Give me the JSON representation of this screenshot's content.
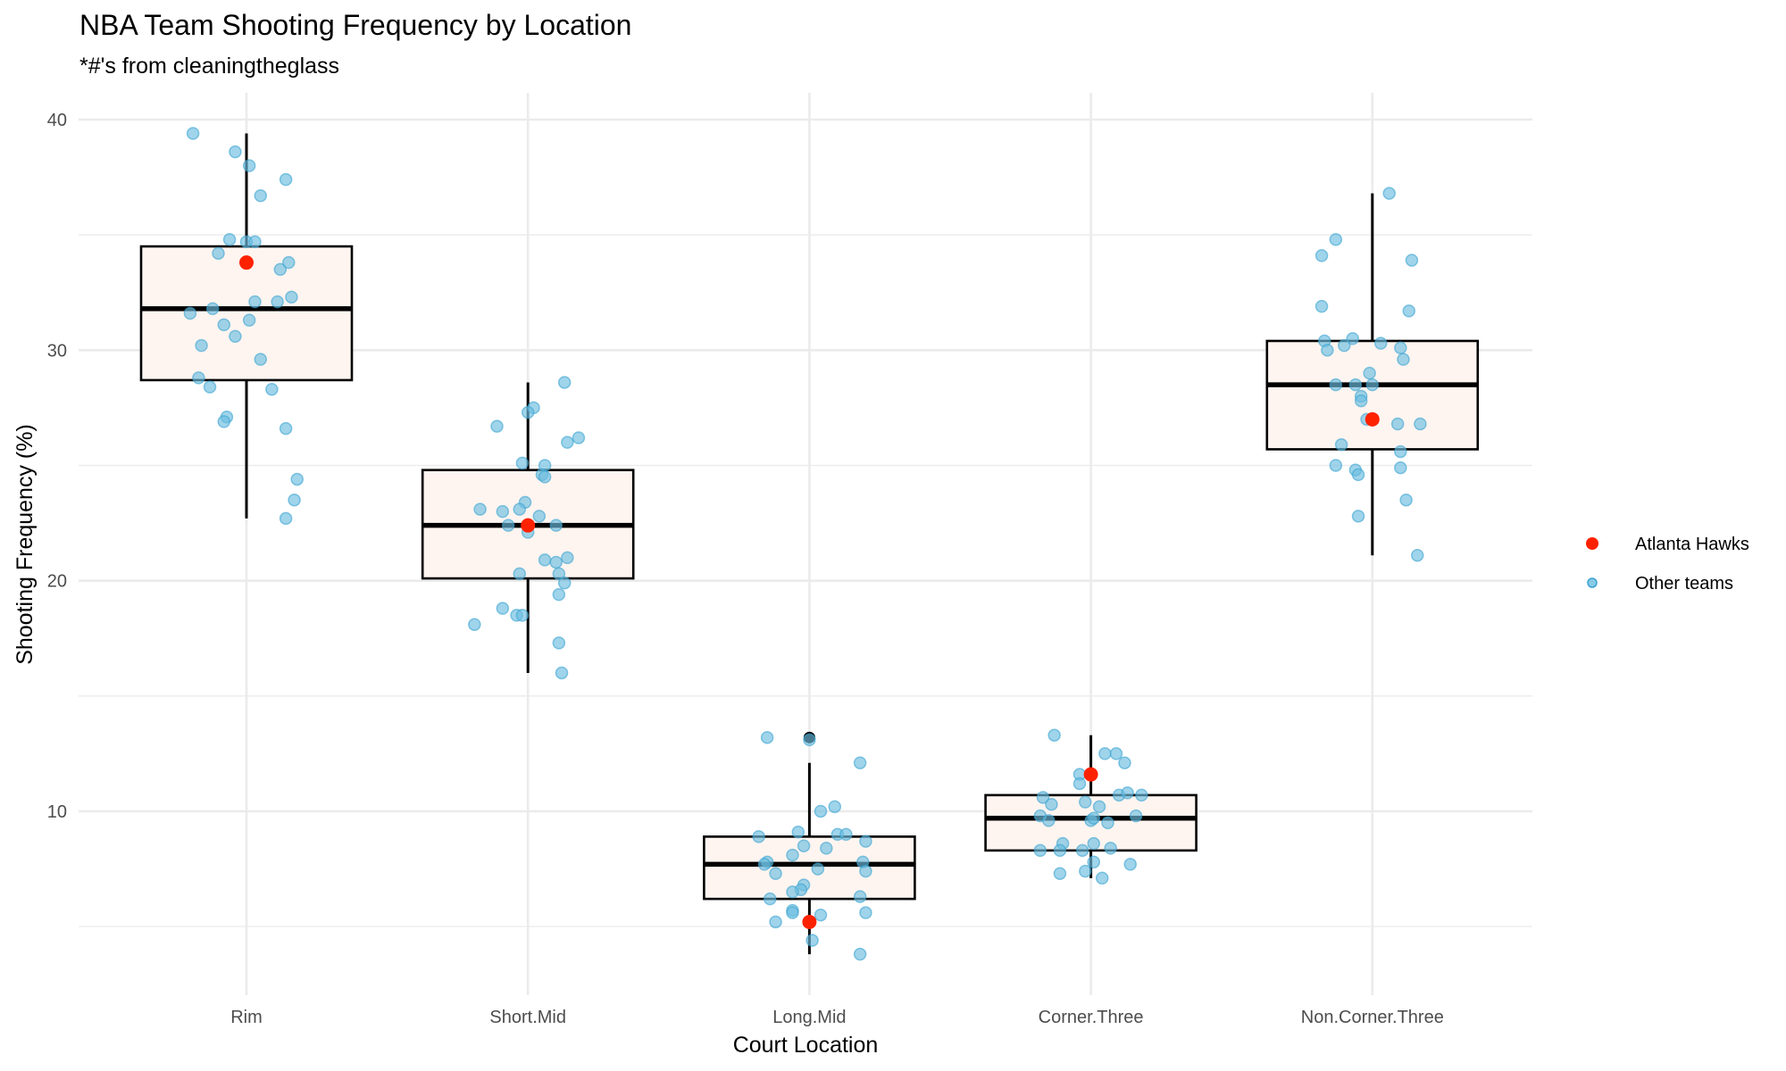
{
  "chart_data": {
    "type": "box",
    "title": "NBA Team Shooting Frequency by Location",
    "subtitle": "*#'s from cleaningtheglass",
    "xlabel": "Court Location",
    "ylabel": "Shooting Frequency (%)",
    "ylim": [
      2.4,
      42.5
    ],
    "yticks": [
      10,
      20,
      30,
      40
    ],
    "yminor": [
      5,
      15,
      25,
      35
    ],
    "ytick_labels": [
      "10",
      "20",
      "30",
      "40"
    ],
    "grid": true,
    "categories": [
      "Rim",
      "Short.Mid",
      "Long.Mid",
      "Corner.Three",
      "Non.Corner.Three"
    ],
    "legend": {
      "position": "right",
      "entries": [
        {
          "label": "Atlanta Hawks",
          "color": "#ff2200"
        },
        {
          "label": "Other teams",
          "color": "#6bbde0"
        }
      ]
    },
    "colors": {
      "box_fill": "#fff5f0",
      "box_stroke": "#000000",
      "hawks": "#ff2200",
      "others": "#6bbde0",
      "others_stroke": "#3aa3d0",
      "outlier": "#000000"
    },
    "boxes": [
      {
        "category": "Rim",
        "whisker_low": 22.7,
        "q1": 28.7,
        "median": 31.8,
        "q3": 34.5,
        "whisker_high": 39.4,
        "outliers": []
      },
      {
        "category": "Short.Mid",
        "whisker_low": 16.0,
        "q1": 20.1,
        "median": 22.4,
        "q3": 24.8,
        "whisker_high": 28.6,
        "outliers": []
      },
      {
        "category": "Long.Mid",
        "whisker_low": 3.8,
        "q1": 6.2,
        "median": 7.7,
        "q3": 8.9,
        "whisker_high": 12.1,
        "outliers": [
          13.2
        ]
      },
      {
        "category": "Corner.Three",
        "whisker_low": 7.1,
        "q1": 8.3,
        "median": 9.7,
        "q3": 10.7,
        "whisker_high": 13.3,
        "outliers": []
      },
      {
        "category": "Non.Corner.Three",
        "whisker_low": 21.1,
        "q1": 25.7,
        "median": 28.5,
        "q3": 30.4,
        "whisker_high": 36.8,
        "outliers": []
      }
    ],
    "hawks": [
      {
        "category": "Rim",
        "value": 33.8
      },
      {
        "category": "Short.Mid",
        "value": 22.4
      },
      {
        "category": "Long.Mid",
        "value": 5.2
      },
      {
        "category": "Corner.Three",
        "value": 11.6
      },
      {
        "category": "Non.Corner.Three",
        "value": 27.0
      }
    ],
    "other_teams": {
      "Rim": [
        [
          -0.19,
          39.4
        ],
        [
          -0.04,
          38.6
        ],
        [
          0.01,
          38.0
        ],
        [
          0.14,
          37.4
        ],
        [
          0.05,
          36.7
        ],
        [
          -0.06,
          34.8
        ],
        [
          0.0,
          34.7
        ],
        [
          0.03,
          34.7
        ],
        [
          -0.1,
          34.2
        ],
        [
          0.12,
          33.5
        ],
        [
          0.15,
          33.8
        ],
        [
          0.03,
          32.1
        ],
        [
          0.11,
          32.1
        ],
        [
          0.16,
          32.3
        ],
        [
          -0.2,
          31.6
        ],
        [
          -0.12,
          31.8
        ],
        [
          -0.08,
          31.1
        ],
        [
          0.01,
          31.3
        ],
        [
          -0.04,
          30.6
        ],
        [
          -0.16,
          30.2
        ],
        [
          0.05,
          29.6
        ],
        [
          -0.17,
          28.8
        ],
        [
          -0.13,
          28.4
        ],
        [
          0.09,
          28.3
        ],
        [
          -0.07,
          27.1
        ],
        [
          -0.08,
          26.9
        ],
        [
          0.14,
          26.6
        ],
        [
          0.18,
          24.4
        ],
        [
          0.17,
          23.5
        ],
        [
          0.14,
          22.7
        ]
      ],
      "Short.Mid": [
        [
          0.13,
          28.6
        ],
        [
          0.02,
          27.5
        ],
        [
          0.0,
          27.3
        ],
        [
          -0.11,
          26.7
        ],
        [
          0.18,
          26.2
        ],
        [
          0.14,
          26.0
        ],
        [
          -0.02,
          25.1
        ],
        [
          0.06,
          25.0
        ],
        [
          0.05,
          24.6
        ],
        [
          0.06,
          24.5
        ],
        [
          -0.01,
          23.4
        ],
        [
          -0.17,
          23.1
        ],
        [
          -0.09,
          23.0
        ],
        [
          -0.03,
          23.1
        ],
        [
          0.04,
          22.8
        ],
        [
          -0.07,
          22.4
        ],
        [
          0.1,
          22.4
        ],
        [
          0.0,
          22.1
        ],
        [
          0.06,
          20.9
        ],
        [
          0.1,
          20.8
        ],
        [
          0.14,
          21.0
        ],
        [
          -0.03,
          20.3
        ],
        [
          0.11,
          20.3
        ],
        [
          0.13,
          19.9
        ],
        [
          0.11,
          19.4
        ],
        [
          -0.09,
          18.8
        ],
        [
          -0.04,
          18.5
        ],
        [
          -0.02,
          18.5
        ],
        [
          -0.19,
          18.1
        ],
        [
          0.11,
          17.3
        ],
        [
          0.12,
          16.0
        ]
      ],
      "Long.Mid": [
        [
          -0.15,
          13.2
        ],
        [
          0.0,
          13.1
        ],
        [
          0.18,
          12.1
        ],
        [
          0.04,
          10.0
        ],
        [
          0.09,
          10.2
        ],
        [
          -0.04,
          9.1
        ],
        [
          -0.18,
          8.9
        ],
        [
          0.1,
          9.0
        ],
        [
          0.13,
          9.0
        ],
        [
          0.2,
          8.7
        ],
        [
          -0.02,
          8.5
        ],
        [
          0.06,
          8.4
        ],
        [
          -0.06,
          8.1
        ],
        [
          -0.15,
          7.8
        ],
        [
          -0.16,
          7.7
        ],
        [
          0.19,
          7.8
        ],
        [
          0.03,
          7.5
        ],
        [
          0.2,
          7.4
        ],
        [
          -0.12,
          7.3
        ],
        [
          -0.02,
          6.8
        ],
        [
          -0.03,
          6.6
        ],
        [
          -0.06,
          6.5
        ],
        [
          0.18,
          6.3
        ],
        [
          -0.14,
          6.2
        ],
        [
          -0.06,
          5.7
        ],
        [
          -0.06,
          5.6
        ],
        [
          0.2,
          5.6
        ],
        [
          -0.12,
          5.2
        ],
        [
          0.04,
          5.5
        ],
        [
          0.01,
          4.4
        ],
        [
          0.18,
          3.8
        ]
      ],
      "Corner.Three": [
        [
          -0.13,
          13.3
        ],
        [
          0.05,
          12.5
        ],
        [
          0.09,
          12.5
        ],
        [
          0.12,
          12.1
        ],
        [
          -0.04,
          11.6
        ],
        [
          -0.04,
          11.2
        ],
        [
          -0.17,
          10.6
        ],
        [
          0.1,
          10.7
        ],
        [
          0.13,
          10.8
        ],
        [
          0.18,
          10.7
        ],
        [
          -0.14,
          10.3
        ],
        [
          -0.02,
          10.4
        ],
        [
          0.03,
          10.2
        ],
        [
          -0.18,
          9.8
        ],
        [
          0.16,
          9.8
        ],
        [
          -0.15,
          9.6
        ],
        [
          0.0,
          9.6
        ],
        [
          0.01,
          9.7
        ],
        [
          0.06,
          9.5
        ],
        [
          -0.1,
          8.6
        ],
        [
          0.01,
          8.6
        ],
        [
          -0.18,
          8.3
        ],
        [
          -0.11,
          8.3
        ],
        [
          -0.03,
          8.3
        ],
        [
          0.07,
          8.4
        ],
        [
          0.01,
          7.8
        ],
        [
          0.14,
          7.7
        ],
        [
          -0.02,
          7.4
        ],
        [
          -0.11,
          7.3
        ],
        [
          0.04,
          7.1
        ]
      ],
      "Non.Corner.Three": [
        [
          0.06,
          36.8
        ],
        [
          -0.13,
          34.8
        ],
        [
          -0.18,
          34.1
        ],
        [
          0.14,
          33.9
        ],
        [
          -0.18,
          31.9
        ],
        [
          0.13,
          31.7
        ],
        [
          -0.17,
          30.4
        ],
        [
          -0.07,
          30.5
        ],
        [
          -0.1,
          30.2
        ],
        [
          0.03,
          30.3
        ],
        [
          -0.16,
          30.0
        ],
        [
          0.1,
          30.1
        ],
        [
          0.11,
          29.6
        ],
        [
          -0.01,
          29.0
        ],
        [
          -0.13,
          28.5
        ],
        [
          -0.06,
          28.5
        ],
        [
          0.0,
          28.5
        ],
        [
          -0.04,
          28.0
        ],
        [
          -0.04,
          27.8
        ],
        [
          -0.02,
          27.0
        ],
        [
          0.09,
          26.8
        ],
        [
          0.17,
          26.8
        ],
        [
          -0.11,
          25.9
        ],
        [
          0.1,
          25.6
        ],
        [
          -0.13,
          25.0
        ],
        [
          -0.06,
          24.8
        ],
        [
          -0.05,
          24.6
        ],
        [
          0.1,
          24.9
        ],
        [
          0.12,
          23.5
        ],
        [
          -0.05,
          22.8
        ],
        [
          0.16,
          21.1
        ]
      ]
    }
  }
}
